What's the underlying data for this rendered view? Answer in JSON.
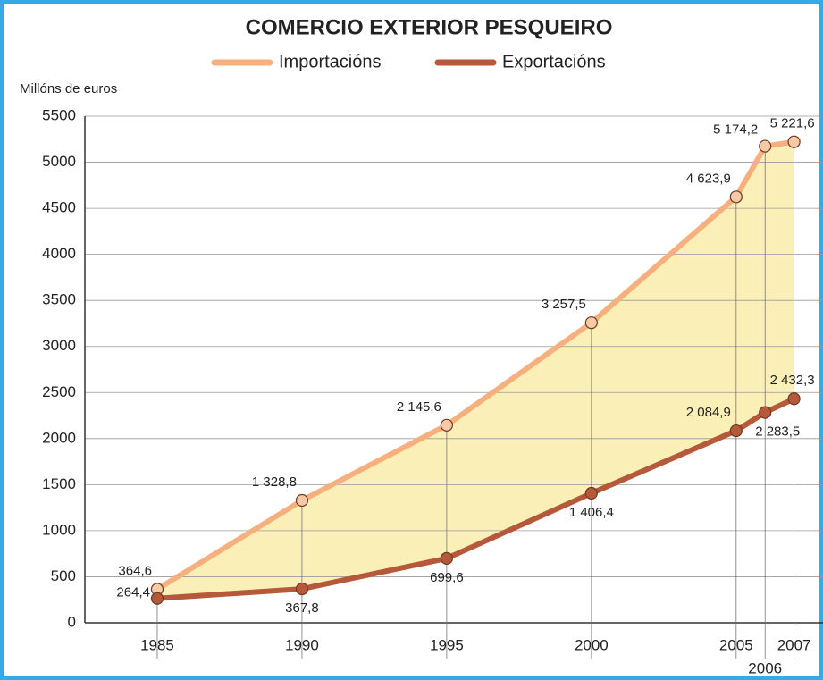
{
  "chart_data": {
    "type": "line",
    "title": "COMERCIO EXTERIOR PESQUEIRO",
    "ylabel": "Millóns de euros",
    "x": [
      1985,
      1990,
      1995,
      2000,
      2005,
      2006,
      2007
    ],
    "series": [
      {
        "name": "Importacións",
        "color": "#f5b07e",
        "values": [
          364.6,
          1328.8,
          2145.6,
          3257.5,
          4623.9,
          5174.2,
          5221.6
        ],
        "value_labels": [
          "364,6",
          "1 328,8",
          "2 145,6",
          "3 257,5",
          "4 623,9",
          "5 174,2",
          "5 221,6"
        ]
      },
      {
        "name": "Exportacións",
        "color": "#b5593a",
        "values": [
          264.4,
          367.8,
          699.6,
          1406.4,
          2084.9,
          2283.5,
          2432.3
        ],
        "value_labels": [
          "264,4",
          "367,8",
          "699,6",
          "1 406,4",
          "2 084,9",
          "2 283,5",
          "2 432,3"
        ]
      }
    ],
    "xlim": [
      1982.5,
      2008
    ],
    "xticks": [
      1985,
      1990,
      1995,
      2000,
      2005,
      2006,
      2007
    ],
    "ylim": [
      0,
      5500
    ],
    "yticks": [
      0,
      500,
      1000,
      1500,
      2000,
      2500,
      3000,
      3500,
      4000,
      4500,
      5000,
      5500
    ],
    "grid": true,
    "fill_between": "#fbefb8"
  }
}
